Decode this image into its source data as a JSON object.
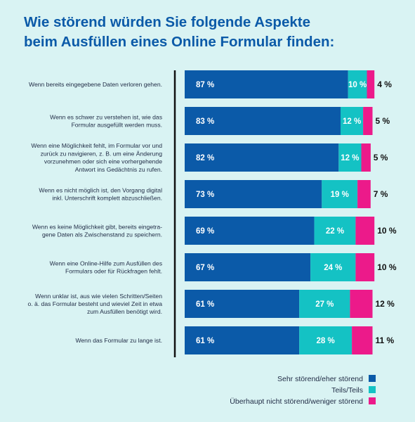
{
  "chart_data": {
    "type": "bar",
    "orientation": "horizontal",
    "stacked": true,
    "title": [
      "Wie störend würden Sie folgende Aspekte",
      "beim Ausfüllen eines Online Formular finden:"
    ],
    "categories": [
      [
        "Wenn bereits eingegebene Daten verloren gehen."
      ],
      [
        "Wenn es schwer zu verstehen ist, wie das",
        "Formular ausgefüllt werden muss."
      ],
      [
        "Wenn eine Möglichkeit fehlt, im Formular vor und",
        "zurück zu navigieren, z. B. um eine Änderung",
        "vorzunehmen oder sich eine vorhergehende",
        "Antwort ins Gedächtnis zu rufen."
      ],
      [
        "Wenn es nicht möglich ist, den Vorgang digital",
        "inkl. Unterschrift komplett abzuschließen."
      ],
      [
        "Wenn es keine Möglichkeit gibt, bereits eingetra-",
        "gene Daten als Zwischenstand zu speichern."
      ],
      [
        "Wenn eine Online-Hilfe zum Ausfüllen des",
        "Formulars oder für Rückfragen fehlt."
      ],
      [
        "Wenn unklar ist, aus wie vielen Schritten/Seiten",
        "o. ä. das Formular besteht und wieviel Zeit in etwa",
        "zum Ausfüllen benötigt wird."
      ],
      [
        "Wenn das Formular zu lange ist."
      ]
    ],
    "series": [
      {
        "name": "Sehr störend/eher störend",
        "color": "#0b5aa8",
        "values": [
          87,
          83,
          82,
          73,
          69,
          67,
          61,
          61
        ]
      },
      {
        "name": "Teils/Teils",
        "color": "#14c2c4",
        "values": [
          10,
          12,
          12,
          19,
          22,
          24,
          27,
          28
        ]
      },
      {
        "name": "Überhaupt nicht störend/weniger störend",
        "color": "#ec1a8a",
        "values": [
          4,
          5,
          5,
          7,
          10,
          10,
          12,
          11
        ]
      }
    ],
    "value_suffix": " %",
    "legend_position": "bottom-right"
  }
}
